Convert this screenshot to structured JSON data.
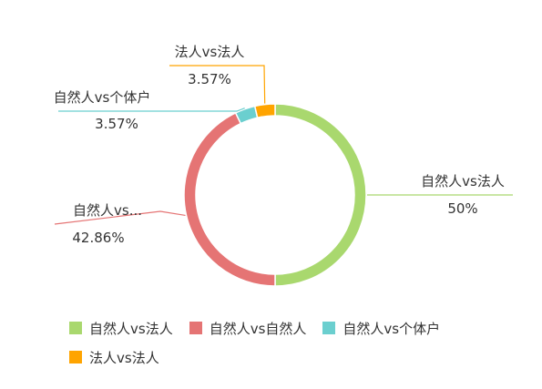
{
  "chart_data": {
    "type": "pie",
    "variant": "donut",
    "title": "",
    "categories": [
      "自然人vs法人",
      "自然人vs自然人",
      "自然人vs个体户",
      "法人vs法人"
    ],
    "values": [
      50,
      42.86,
      3.57,
      3.57
    ],
    "colors": [
      "#a9d86e",
      "#e57474",
      "#6bcfcf",
      "#ffa400"
    ],
    "slice_labels": [
      {
        "name": "自然人vs法人",
        "percent": "50%"
      },
      {
        "name": "自然人vs...",
        "percent": "42.86%"
      },
      {
        "name": "自然人vs个体户",
        "percent": "3.57%"
      },
      {
        "name": "法人vs法人",
        "percent": "3.57%"
      }
    ],
    "legend_position": "bottom-left"
  }
}
